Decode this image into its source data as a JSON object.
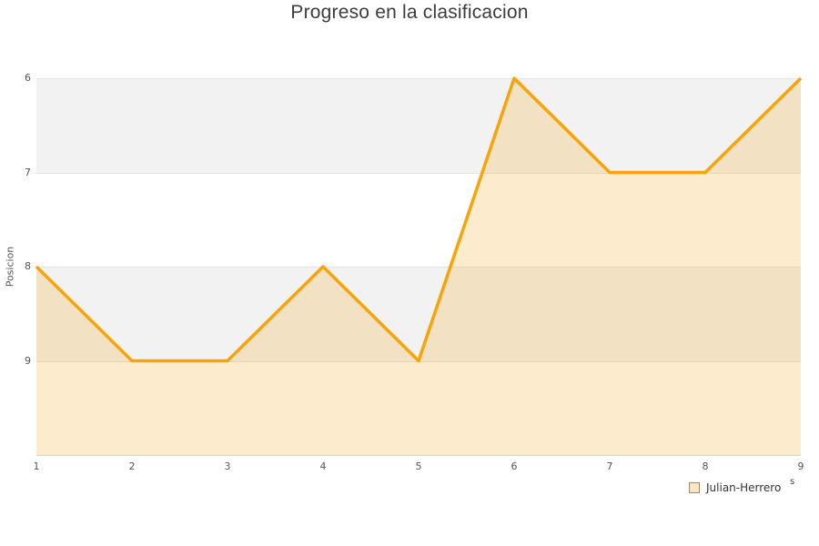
{
  "chart_data": {
    "type": "line",
    "title": "Progreso en la clasificacion",
    "xlabel": "",
    "ylabel": "Posicion",
    "x": [
      1,
      2,
      3,
      4,
      5,
      6,
      7,
      8,
      9
    ],
    "series": [
      {
        "name": "Julian-Herrero",
        "values": [
          8,
          9,
          9,
          8,
          9,
          6,
          7,
          7,
          6
        ]
      }
    ],
    "x_ticks": [
      "1",
      "2",
      "3",
      "4",
      "5",
      "6",
      "7",
      "8",
      "9"
    ],
    "y_ticks": [
      "6",
      "7",
      "8",
      "9"
    ],
    "y_tick_values": [
      6,
      7,
      8,
      9
    ],
    "xlim": [
      1,
      9
    ],
    "ylim": [
      6,
      10
    ],
    "y_axis_reversed": true,
    "grid": "horizontal-bands-alternating",
    "legend_position": "bottom-right",
    "area_fill": true
  },
  "legend": {
    "label": "Julian-Herrero"
  },
  "x_axis": {
    "fragment": "s"
  },
  "colors": {
    "line": "#f8a408",
    "area_fill": "rgba(247,166,30,0.22)",
    "band_gray": "#f2f2f2",
    "band_white": "#ffffff",
    "gridline": "#e4e4e4",
    "axis_line": "#d4d4d4",
    "title_text": "#3c3c3c",
    "tick_text": "#555555",
    "legend_swatch_fill": "#fae5c4",
    "legend_swatch_border": "#9a8a6a"
  }
}
